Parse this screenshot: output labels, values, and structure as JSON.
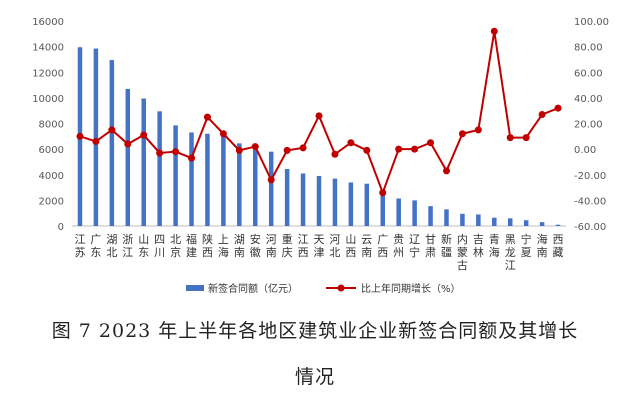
{
  "chart_data": {
    "type": "bar+line",
    "categories": [
      "江苏",
      "广东",
      "湖北",
      "浙江",
      "山东",
      "四川",
      "北京",
      "福建",
      "陕西",
      "上海",
      "湖南",
      "安徽",
      "河南",
      "重庆",
      "江西",
      "天津",
      "河北",
      "山西",
      "云南",
      "广西",
      "贵州",
      "辽宁",
      "甘肃",
      "新疆",
      "内蒙古",
      "吉林",
      "青海",
      "黑龙江",
      "宁夏",
      "海南",
      "西藏"
    ],
    "series": [
      {
        "name": "新签合同额（亿元）",
        "type": "bar",
        "axis": "left",
        "color": "#4472C4",
        "values": [
          13950,
          13850,
          12950,
          10700,
          9950,
          8950,
          7850,
          7300,
          7200,
          7000,
          6450,
          6150,
          5800,
          4450,
          4100,
          3900,
          3700,
          3400,
          3300,
          2400,
          2150,
          2000,
          1550,
          1300,
          950,
          900,
          650,
          600,
          450,
          300,
          100
        ]
      },
      {
        "name": "比上年同期增长（%）",
        "type": "line",
        "axis": "right",
        "color": "#C00000",
        "values": [
          10,
          6,
          15,
          4,
          11,
          -3,
          -2,
          -7,
          25,
          12,
          -1,
          2,
          -24,
          -1,
          1,
          26,
          -4,
          5,
          -1,
          -34,
          0,
          0,
          5,
          -17,
          12,
          15,
          92,
          9,
          9,
          27,
          32
        ]
      }
    ],
    "y_left": {
      "min": 0,
      "max": 16000,
      "ticks": [
        "0",
        "2000",
        "4000",
        "6000",
        "8000",
        "10000",
        "12000",
        "14000",
        "16000"
      ]
    },
    "y_right": {
      "min": -60,
      "max": 100,
      "ticks": [
        "-60.00",
        "-40.00",
        "-20.00",
        "0.00",
        "20.00",
        "40.00",
        "60.00",
        "80.00",
        "100.00"
      ]
    },
    "legend_position": "bottom",
    "grid": false
  },
  "caption": {
    "line1": "图 7 2023 年上半年各地区建筑业企业新签合同额及其增长",
    "line2": "情况"
  }
}
